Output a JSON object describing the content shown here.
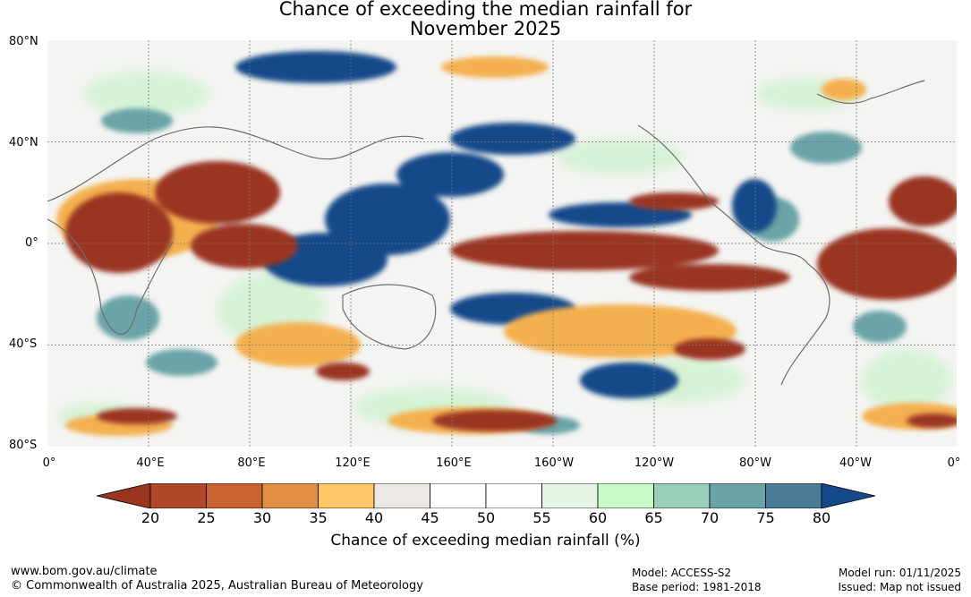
{
  "title": {
    "line1": "Chance of exceeding the median rainfall for",
    "line2": "November 2025"
  },
  "axes": {
    "lat_labels": [
      "80°N",
      "40°N",
      "0°",
      "40°S",
      "80°S"
    ],
    "lon_labels": [
      "0°",
      "40°E",
      "80°E",
      "120°E",
      "160°E",
      "160°W",
      "120°W",
      "80°W",
      "40°W",
      "0°"
    ]
  },
  "colorbar": {
    "ticks": [
      "20",
      "25",
      "30",
      "35",
      "40",
      "45",
      "50",
      "55",
      "60",
      "65",
      "70",
      "75",
      "80"
    ],
    "label": "Chance of exceeding median rainfall (%)",
    "colors": [
      "#9a3520",
      "#b0462a",
      "#c96230",
      "#e09040",
      "#fdc865",
      "#ece8e4",
      "#ffffff",
      "#ffffff",
      "#e6f5e6",
      "#c8fac8",
      "#9acfba",
      "#6aa4a8",
      "#4a7c98",
      "#14498a"
    ]
  },
  "footer": {
    "website": "www.bom.gov.au/climate",
    "copyright": "© Commonwealth of Australia 2025, Australian Bureau of Meteorology",
    "model": "Model: ACCESS-S2",
    "base_period": "Base period: 1981-2018",
    "model_run": "Model run: 01/11/2025",
    "issued": "Issued: Map not issued"
  }
}
